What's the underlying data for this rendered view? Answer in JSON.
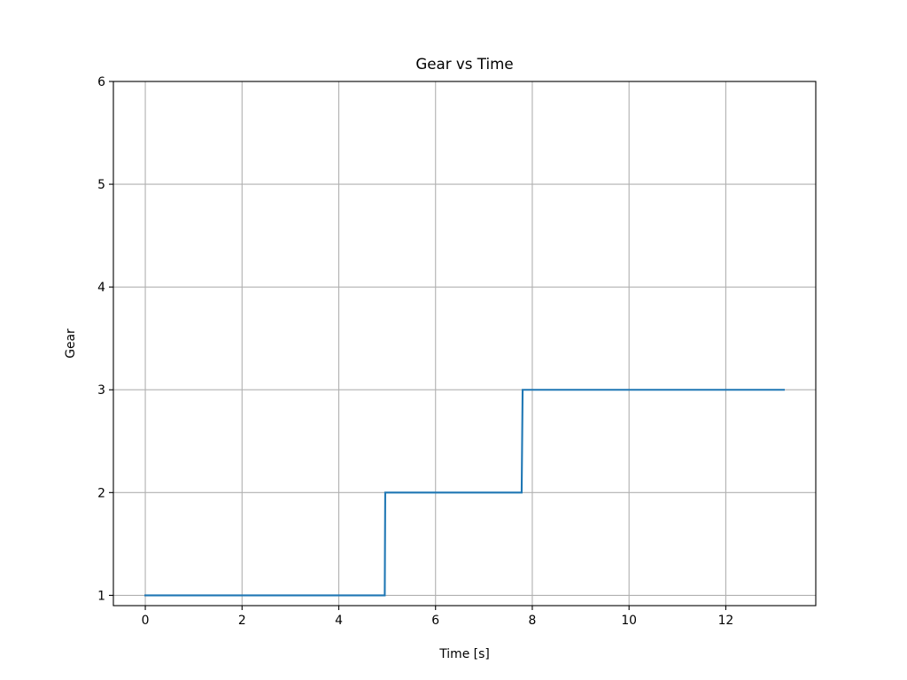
{
  "chart_data": {
    "type": "line",
    "drawstyle": "steps",
    "title": "Gear vs Time",
    "xlabel": "Time [s]",
    "ylabel": "Gear",
    "xlim": [
      -0.66,
      13.86
    ],
    "ylim": [
      0.9,
      6.0
    ],
    "xticks": [
      0,
      2,
      4,
      6,
      8,
      10,
      12
    ],
    "yticks": [
      1,
      2,
      3,
      4,
      5,
      6
    ],
    "grid": true,
    "series": [
      {
        "color": "#1f77b4",
        "points": [
          {
            "x": 0.0,
            "y": 1
          },
          {
            "x": 4.95,
            "y": 1
          },
          {
            "x": 4.96,
            "y": 2
          },
          {
            "x": 7.78,
            "y": 2
          },
          {
            "x": 7.8,
            "y": 3
          },
          {
            "x": 13.2,
            "y": 3
          }
        ]
      }
    ]
  }
}
